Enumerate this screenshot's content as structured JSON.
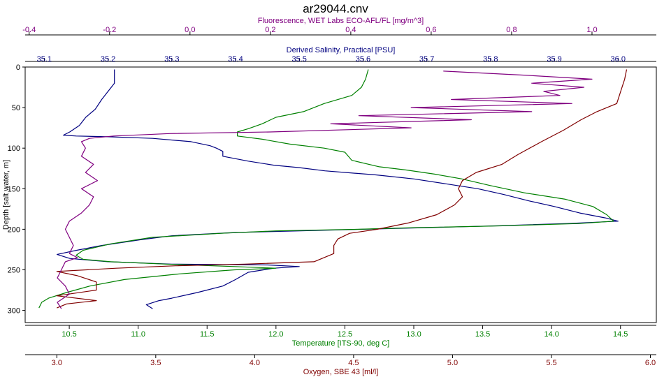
{
  "chart_data": {
    "type": "line",
    "title": "ar29044.cnv",
    "y_axis": {
      "label": "Depth [salt water, m]",
      "range": [
        0,
        315
      ],
      "inverted": true,
      "ticks": [
        0,
        50,
        100,
        150,
        200,
        250,
        300
      ]
    },
    "x_axes": [
      {
        "id": "fluorescence",
        "label": "Fluorescence, WET Labs ECO-AFL/FL [mg/m^3]",
        "position": "top-outer",
        "color": "#800080",
        "range": [
          -0.41,
          1.16
        ],
        "ticks": [
          -0.4,
          -0.2,
          0.0,
          0.2,
          0.4,
          0.6,
          0.8,
          1.0
        ],
        "tick_labels": [
          "-0.4",
          "-0.2",
          "0.0",
          "0.2",
          "0.4",
          "0.6",
          "0.8",
          "1.0"
        ]
      },
      {
        "id": "salinity",
        "label": "Derived Salinity, Practical [PSU]",
        "position": "top-inner",
        "color": "#000080",
        "range": [
          35.07,
          36.06
        ],
        "ticks": [
          35.1,
          35.2,
          35.3,
          35.4,
          35.5,
          35.6,
          35.7,
          35.8,
          35.9,
          36.0
        ],
        "tick_labels": [
          "35.1",
          "35.2",
          "35.3",
          "35.4",
          "35.5",
          "35.6",
          "35.7",
          "35.8",
          "35.9",
          "36.0"
        ]
      },
      {
        "id": "temperature",
        "label": "Temperature [ITS-90, deg C]",
        "position": "bottom-inner",
        "color": "#008000",
        "range": [
          10.18,
          14.76
        ],
        "ticks": [
          10.5,
          11.0,
          11.5,
          12.0,
          12.5,
          13.0,
          13.5,
          14.0,
          14.5
        ],
        "tick_labels": [
          "10.5",
          "11.0",
          "11.5",
          "12.0",
          "12.5",
          "13.0",
          "13.5",
          "14.0",
          "14.5"
        ]
      },
      {
        "id": "oxygen",
        "label": "Oxygen, SBE 43 [ml/l]",
        "position": "bottom-outer",
        "color": "#800000",
        "range": [
          2.84,
          6.03
        ],
        "ticks": [
          3.0,
          3.5,
          4.0,
          4.5,
          5.0,
          5.5,
          6.0
        ],
        "tick_labels": [
          "3.0",
          "3.5",
          "4.0",
          "4.5",
          "5.0",
          "5.5",
          "6.0"
        ]
      }
    ],
    "series": [
      {
        "id": "salinity",
        "axis": "salinity",
        "color": "#000080",
        "points": [
          [
            35.21,
            3
          ],
          [
            35.21,
            20
          ],
          [
            35.2,
            30
          ],
          [
            35.19,
            40
          ],
          [
            35.18,
            52
          ],
          [
            35.165,
            62
          ],
          [
            35.155,
            72
          ],
          [
            35.14,
            80
          ],
          [
            35.13,
            84
          ],
          [
            35.15,
            85
          ],
          [
            35.2,
            86
          ],
          [
            35.27,
            88
          ],
          [
            35.33,
            92
          ],
          [
            35.36,
            97
          ],
          [
            35.37,
            100
          ],
          [
            35.38,
            104
          ],
          [
            35.38,
            110
          ],
          [
            35.42,
            116
          ],
          [
            35.46,
            121
          ],
          [
            35.5,
            124
          ],
          [
            35.54,
            128
          ],
          [
            35.62,
            133
          ],
          [
            35.68,
            138
          ],
          [
            35.73,
            144
          ],
          [
            35.78,
            150
          ],
          [
            35.82,
            157
          ],
          [
            35.86,
            165
          ],
          [
            35.9,
            172
          ],
          [
            35.94,
            180
          ],
          [
            35.98,
            186
          ],
          [
            36.0,
            190
          ],
          [
            35.92,
            193
          ],
          [
            35.8,
            196
          ],
          [
            35.6,
            200
          ],
          [
            35.4,
            204
          ],
          [
            35.3,
            208
          ],
          [
            35.25,
            213
          ],
          [
            35.19,
            220
          ],
          [
            35.15,
            226
          ],
          [
            35.12,
            231
          ],
          [
            35.14,
            236
          ],
          [
            35.2,
            240
          ],
          [
            35.3,
            243
          ],
          [
            35.45,
            244
          ],
          [
            35.5,
            246
          ],
          [
            35.46,
            248
          ],
          [
            35.42,
            253
          ],
          [
            35.4,
            262
          ],
          [
            35.38,
            270
          ],
          [
            35.34,
            278
          ],
          [
            35.3,
            285
          ],
          [
            35.28,
            288
          ],
          [
            35.26,
            293
          ],
          [
            35.27,
            298
          ]
        ]
      },
      {
        "id": "temperature",
        "axis": "temperature",
        "color": "#008000",
        "points": [
          [
            12.67,
            3
          ],
          [
            12.65,
            15
          ],
          [
            12.62,
            25
          ],
          [
            12.55,
            35
          ],
          [
            12.35,
            45
          ],
          [
            12.2,
            55
          ],
          [
            12.0,
            62
          ],
          [
            11.9,
            70
          ],
          [
            11.8,
            76
          ],
          [
            11.72,
            80
          ],
          [
            11.72,
            85
          ],
          [
            11.9,
            89
          ],
          [
            12.1,
            95
          ],
          [
            12.35,
            100
          ],
          [
            12.5,
            105
          ],
          [
            12.55,
            115
          ],
          [
            12.75,
            123
          ],
          [
            12.95,
            127
          ],
          [
            13.15,
            132
          ],
          [
            13.35,
            138
          ],
          [
            13.55,
            146
          ],
          [
            13.8,
            155
          ],
          [
            14.1,
            163
          ],
          [
            14.3,
            172
          ],
          [
            14.4,
            182
          ],
          [
            14.45,
            190
          ],
          [
            14.2,
            193
          ],
          [
            13.6,
            196
          ],
          [
            13.0,
            198
          ],
          [
            12.6,
            200
          ],
          [
            12.0,
            202
          ],
          [
            11.6,
            205
          ],
          [
            11.1,
            210
          ],
          [
            10.8,
            218
          ],
          [
            10.6,
            226
          ],
          [
            10.55,
            232
          ],
          [
            10.6,
            237
          ],
          [
            10.8,
            240
          ],
          [
            11.2,
            243
          ],
          [
            11.7,
            246
          ],
          [
            12.0,
            248
          ],
          [
            11.7,
            250
          ],
          [
            11.3,
            255
          ],
          [
            10.9,
            262
          ],
          [
            10.65,
            270
          ],
          [
            10.48,
            278
          ],
          [
            10.35,
            285
          ],
          [
            10.3,
            290
          ],
          [
            10.28,
            297
          ]
        ]
      },
      {
        "id": "oxygen",
        "axis": "oxygen",
        "color": "#800000",
        "points": [
          [
            5.88,
            3
          ],
          [
            5.87,
            15
          ],
          [
            5.85,
            30
          ],
          [
            5.83,
            45
          ],
          [
            5.73,
            55
          ],
          [
            5.65,
            65
          ],
          [
            5.56,
            78
          ],
          [
            5.45,
            92
          ],
          [
            5.33,
            108
          ],
          [
            5.25,
            120
          ],
          [
            5.12,
            130
          ],
          [
            5.05,
            140
          ],
          [
            5.03,
            150
          ],
          [
            5.05,
            160
          ],
          [
            5.01,
            170
          ],
          [
            4.92,
            182
          ],
          [
            4.78,
            192
          ],
          [
            4.62,
            200
          ],
          [
            4.48,
            205
          ],
          [
            4.42,
            212
          ],
          [
            4.4,
            220
          ],
          [
            4.4,
            230
          ],
          [
            4.3,
            240
          ],
          [
            3.95,
            243
          ],
          [
            3.6,
            245
          ],
          [
            3.3,
            248
          ],
          [
            3.0,
            252
          ],
          [
            3.1,
            257
          ],
          [
            3.2,
            265
          ],
          [
            3.2,
            275
          ],
          [
            3.0,
            282
          ],
          [
            3.2,
            288
          ],
          [
            3.05,
            292
          ],
          [
            3.0,
            297
          ]
        ]
      },
      {
        "id": "fluorescence",
        "axis": "fluorescence",
        "color": "#800080",
        "points": [
          [
            0.63,
            5
          ],
          [
            0.83,
            10
          ],
          [
            1.0,
            15
          ],
          [
            0.85,
            20
          ],
          [
            0.98,
            25
          ],
          [
            0.88,
            30
          ],
          [
            0.92,
            35
          ],
          [
            0.65,
            40
          ],
          [
            0.95,
            45
          ],
          [
            0.55,
            50
          ],
          [
            0.85,
            55
          ],
          [
            0.42,
            60
          ],
          [
            0.7,
            65
          ],
          [
            0.35,
            70
          ],
          [
            0.55,
            75
          ],
          [
            0.2,
            80
          ],
          [
            -0.05,
            82
          ],
          [
            -0.19,
            85
          ],
          [
            -0.25,
            88
          ],
          [
            -0.27,
            92
          ],
          [
            -0.26,
            100
          ],
          [
            -0.27,
            110
          ],
          [
            -0.24,
            120
          ],
          [
            -0.26,
            130
          ],
          [
            -0.23,
            140
          ],
          [
            -0.27,
            150
          ],
          [
            -0.24,
            160
          ],
          [
            -0.25,
            170
          ],
          [
            -0.27,
            180
          ],
          [
            -0.3,
            190
          ],
          [
            -0.31,
            200
          ],
          [
            -0.3,
            210
          ],
          [
            -0.29,
            220
          ],
          [
            -0.3,
            230
          ],
          [
            -0.28,
            235
          ],
          [
            -0.31,
            240
          ],
          [
            -0.32,
            250
          ],
          [
            -0.33,
            260
          ],
          [
            -0.31,
            270
          ],
          [
            -0.3,
            280
          ],
          [
            -0.33,
            290
          ],
          [
            -0.32,
            298
          ]
        ]
      }
    ]
  }
}
